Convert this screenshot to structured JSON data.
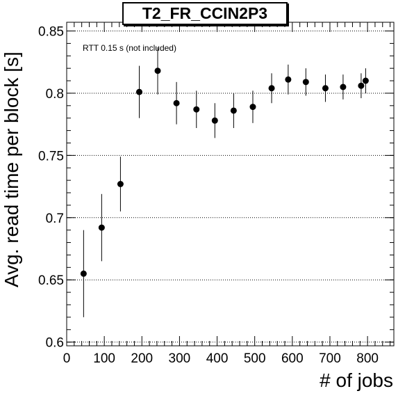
{
  "chart_data": {
    "type": "scatter",
    "title": "T2_FR_CCIN2P3",
    "xlabel": "# of jobs",
    "ylabel": "Avg. read time per block [s]",
    "annotation": "RTT 0.15 s (not included)",
    "xlim": [
      0,
      870
    ],
    "ylim": [
      0.597,
      0.857
    ],
    "xticks": [
      0,
      100,
      200,
      300,
      400,
      500,
      600,
      700,
      800
    ],
    "xtick_labels": [
      "0",
      "100",
      "200",
      "300",
      "400",
      "500",
      "600",
      "700",
      "800"
    ],
    "yticks": [
      0.6,
      0.65,
      0.7,
      0.75,
      0.8,
      0.85
    ],
    "ytick_labels": [
      "0.6",
      "0.65",
      "0.7",
      "0.75",
      "0.8",
      "0.85"
    ],
    "grid": "horizontal dotted",
    "colors": {
      "marker": "#000000",
      "axis": "#000000",
      "grid": "#000000"
    },
    "points": [
      {
        "x": 45,
        "y": 0.655,
        "err": 0.035
      },
      {
        "x": 93,
        "y": 0.692,
        "err": 0.027
      },
      {
        "x": 143,
        "y": 0.727,
        "err": 0.022
      },
      {
        "x": 193,
        "y": 0.801,
        "err": 0.021
      },
      {
        "x": 242,
        "y": 0.818,
        "err": 0.019
      },
      {
        "x": 292,
        "y": 0.792,
        "err": 0.017
      },
      {
        "x": 345,
        "y": 0.787,
        "err": 0.015
      },
      {
        "x": 394,
        "y": 0.778,
        "err": 0.014
      },
      {
        "x": 444,
        "y": 0.786,
        "err": 0.014
      },
      {
        "x": 495,
        "y": 0.789,
        "err": 0.013
      },
      {
        "x": 545,
        "y": 0.804,
        "err": 0.012
      },
      {
        "x": 589,
        "y": 0.811,
        "err": 0.012
      },
      {
        "x": 636,
        "y": 0.809,
        "err": 0.011
      },
      {
        "x": 688,
        "y": 0.804,
        "err": 0.011
      },
      {
        "x": 735,
        "y": 0.805,
        "err": 0.01
      },
      {
        "x": 783,
        "y": 0.806,
        "err": 0.01
      },
      {
        "x": 795,
        "y": 0.81,
        "err": 0.01
      }
    ]
  }
}
